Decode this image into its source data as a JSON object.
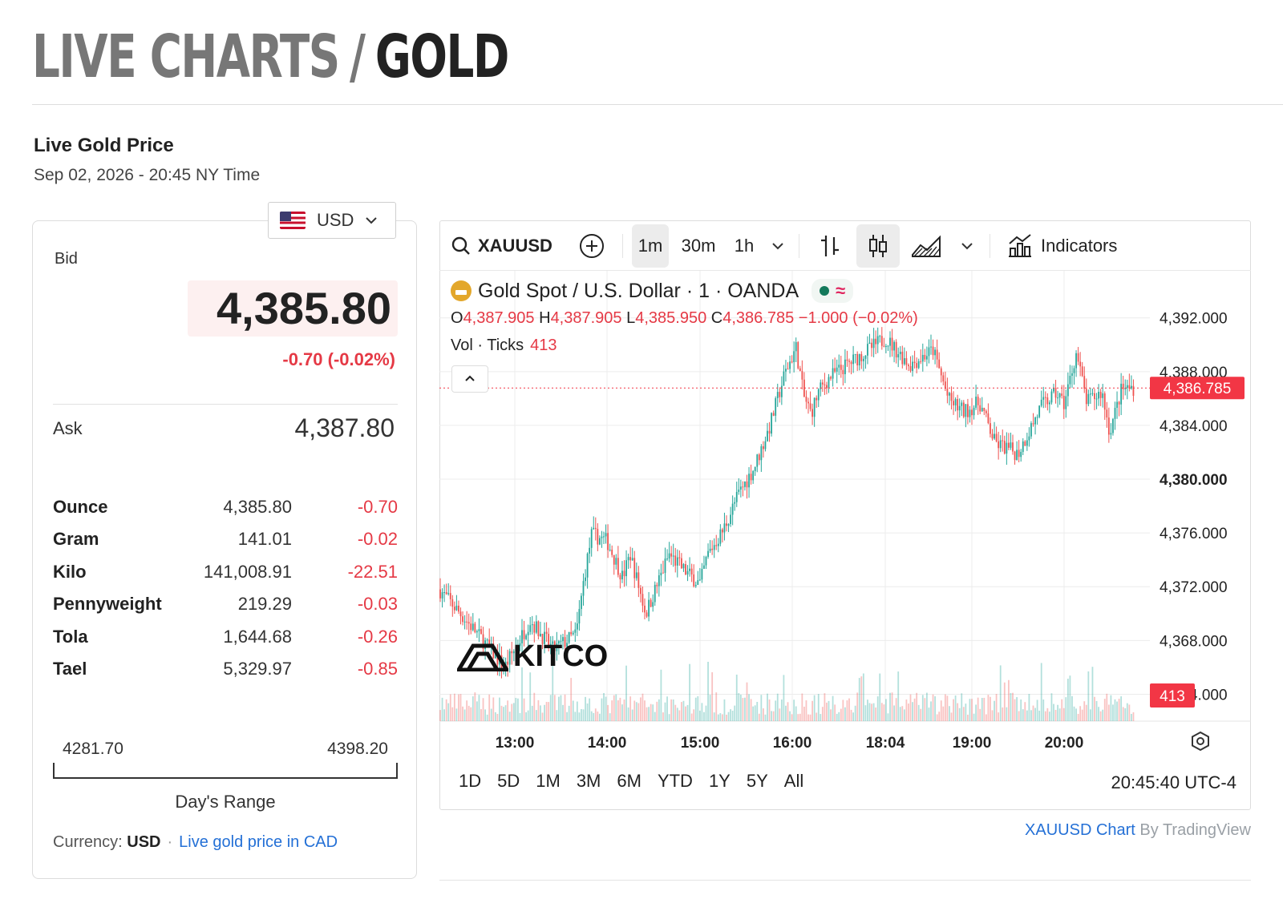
{
  "page": {
    "heading_part1": "LIVE CHARTS",
    "heading_sep": "/",
    "heading_part2": "GOLD",
    "live_title": "Live Gold Price",
    "live_date": "Sep 02, 2026 - 20:45 NY Time"
  },
  "price_card": {
    "currency_selector": "USD",
    "bid_label": "Bid",
    "bid_value": "4,385.80",
    "bid_change": "-0.70 (-0.02%)",
    "ask_label": "Ask",
    "ask_value": "4,387.80",
    "units": [
      {
        "name": "Ounce",
        "value": "4,385.80",
        "change": "-0.70"
      },
      {
        "name": "Gram",
        "value": "141.01",
        "change": "-0.02"
      },
      {
        "name": "Kilo",
        "value": "141,008.91",
        "change": "-22.51"
      },
      {
        "name": "Pennyweight",
        "value": "219.29",
        "change": "-0.03"
      },
      {
        "name": "Tola",
        "value": "1,644.68",
        "change": "-0.26"
      },
      {
        "name": "Tael",
        "value": "5,329.97",
        "change": "-0.85"
      }
    ],
    "day_range_low": "4281.70",
    "day_range_high": "4398.20",
    "day_range_label": "Day's Range",
    "currency_foot_label": "Currency:",
    "currency_foot_value": "USD",
    "cad_link": "Live gold price in CAD"
  },
  "chart_widget": {
    "symbol": "XAUUSD",
    "intervals": [
      "1m",
      "30m",
      "1h"
    ],
    "active_interval": "1m",
    "indicators_label": "Indicators",
    "legend_title": "Gold Spot / U.S. Dollar · 1 · OANDA",
    "ohlc": {
      "o_label": "O",
      "o": "4,387.905",
      "h_label": "H",
      "h": "4,387.905",
      "l_label": "L",
      "l": "4,385.950",
      "c_label": "C",
      "c": "4,386.785",
      "change": "−1.000 (−0.02%)"
    },
    "vol_label": "Vol · Ticks",
    "vol_value": "413",
    "last_price_tag": "4,386.785",
    "vol_tag": "413",
    "watermark": "KITCO",
    "range_tabs": [
      "1D",
      "5D",
      "1M",
      "3M",
      "6M",
      "YTD",
      "1Y",
      "5Y",
      "All"
    ],
    "clock": "20:45:40 UTC-4",
    "credit_link": "XAUUSD Chart",
    "credit_by": "By TradingView",
    "colors": {
      "up": "#26a69a",
      "down": "#ef5350",
      "last_tag": "#f23645"
    },
    "icons": [
      "search-icon",
      "plus-circle-icon",
      "chevron-down-icon",
      "bar-chart-type-icon",
      "candle-chart-type-icon",
      "area-chart-type-icon",
      "indicators-icon",
      "settings-icon",
      "collapse-icon"
    ]
  },
  "chart_data": {
    "type": "candlestick",
    "x_tick_labels": [
      "13:00",
      "14:00",
      "15:00",
      "16:00",
      "18:04",
      "19:00",
      "20:00"
    ],
    "y_tick_labels": [
      "4,364.000",
      "4,368.000",
      "4,372.000",
      "4,376.000",
      "4,380.000",
      "4,384.000",
      "4,388.000",
      "4,392.000"
    ],
    "ylim": [
      4362,
      4395.5
    ],
    "grid": true,
    "last_price": 4386.785,
    "close_path": [
      {
        "x": "12:23",
        "y": 4371.8
      },
      {
        "x": "12:40",
        "y": 4368.8
      },
      {
        "x": "12:55",
        "y": 4366.0
      },
      {
        "x": "13:10",
        "y": 4369.5
      },
      {
        "x": "13:25",
        "y": 4367.3
      },
      {
        "x": "13:40",
        "y": 4368.5
      },
      {
        "x": "13:45",
        "y": 4372.6
      },
      {
        "x": "13:50",
        "y": 4375.9
      },
      {
        "x": "14:00",
        "y": 4375.4
      },
      {
        "x": "14:10",
        "y": 4372.7
      },
      {
        "x": "14:15",
        "y": 4374.4
      },
      {
        "x": "14:25",
        "y": 4370.0
      },
      {
        "x": "14:40",
        "y": 4374.4
      },
      {
        "x": "14:50",
        "y": 4373.2
      },
      {
        "x": "15:00",
        "y": 4372.2
      },
      {
        "x": "15:05",
        "y": 4374.4
      },
      {
        "x": "15:15",
        "y": 4376.2
      },
      {
        "x": "15:25",
        "y": 4378.9
      },
      {
        "x": "15:35",
        "y": 4380.8
      },
      {
        "x": "15:45",
        "y": 4383.8
      },
      {
        "x": "15:55",
        "y": 4387.8
      },
      {
        "x": "16:05",
        "y": 4389.8
      },
      {
        "x": "16:15",
        "y": 4386.2
      },
      {
        "x": "16:25",
        "y": 4384.9
      },
      {
        "x": "16:35",
        "y": 4386.5
      },
      {
        "x": "16:50",
        "y": 4387.6
      },
      {
        "x": "18:04",
        "y": 4390.5
      },
      {
        "x": "18:20",
        "y": 4388.5
      },
      {
        "x": "18:35",
        "y": 4389.6
      },
      {
        "x": "18:45",
        "y": 4385.9
      },
      {
        "x": "18:55",
        "y": 4385.0
      },
      {
        "x": "19:05",
        "y": 4385.7
      },
      {
        "x": "19:15",
        "y": 4382.7
      },
      {
        "x": "19:30",
        "y": 4381.9
      },
      {
        "x": "19:45",
        "y": 4385.4
      },
      {
        "x": "19:55",
        "y": 4386.4
      },
      {
        "x": "20:00",
        "y": 4385.6
      },
      {
        "x": "20:08",
        "y": 4389.4
      },
      {
        "x": "20:15",
        "y": 4385.7
      },
      {
        "x": "20:25",
        "y": 4386.5
      },
      {
        "x": "20:30",
        "y": 4383.5
      },
      {
        "x": "20:38",
        "y": 4386.7
      },
      {
        "x": "20:44",
        "y": 4386.8
      }
    ]
  }
}
